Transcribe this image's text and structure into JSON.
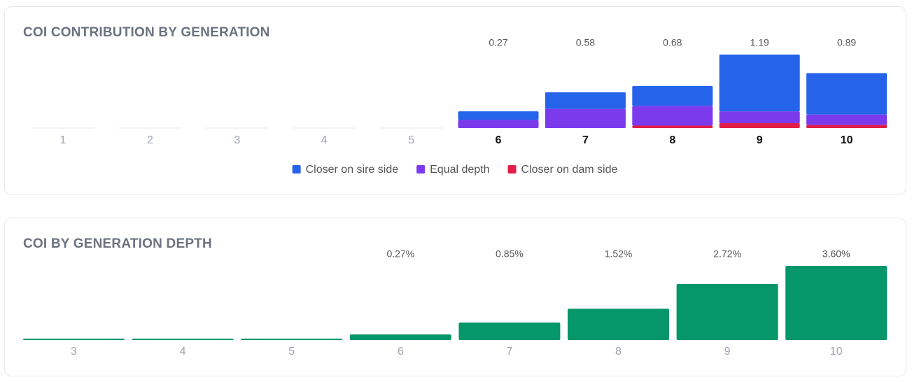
{
  "chart_data": [
    {
      "type": "stacked-bar",
      "title": "COI CONTRIBUTION BY GENERATION",
      "categories": [
        "1",
        "2",
        "3",
        "4",
        "5",
        "6",
        "7",
        "8",
        "9",
        "10"
      ],
      "series": [
        {
          "name": "Closer on sire side",
          "color": "#2563eb",
          "values": [
            0,
            0,
            0,
            0,
            0,
            0.14,
            0.27,
            0.32,
            0.92,
            0.67
          ]
        },
        {
          "name": "Equal depth",
          "color": "#7c3aed",
          "values": [
            0,
            0,
            0,
            0,
            0,
            0.13,
            0.31,
            0.32,
            0.19,
            0.17
          ]
        },
        {
          "name": "Closer on dam side",
          "color": "#e11d48",
          "values": [
            0,
            0,
            0,
            0,
            0,
            0,
            0,
            0.04,
            0.08,
            0.05
          ]
        }
      ],
      "totals": [
        null,
        null,
        null,
        null,
        null,
        0.27,
        0.58,
        0.68,
        1.19,
        0.89
      ],
      "ylim": [
        0,
        1.19
      ]
    },
    {
      "type": "bar",
      "title": "COI BY GENERATION DEPTH",
      "categories": [
        "3",
        "4",
        "5",
        "6",
        "7",
        "8",
        "9",
        "10"
      ],
      "values": [
        0,
        0,
        0,
        0.27,
        0.85,
        1.52,
        2.72,
        3.6
      ],
      "value_labels": [
        null,
        null,
        null,
        "0.27%",
        "0.85%",
        "1.52%",
        "2.72%",
        "3.60%"
      ],
      "color": "#059669",
      "ylim": [
        0,
        3.6
      ]
    }
  ]
}
